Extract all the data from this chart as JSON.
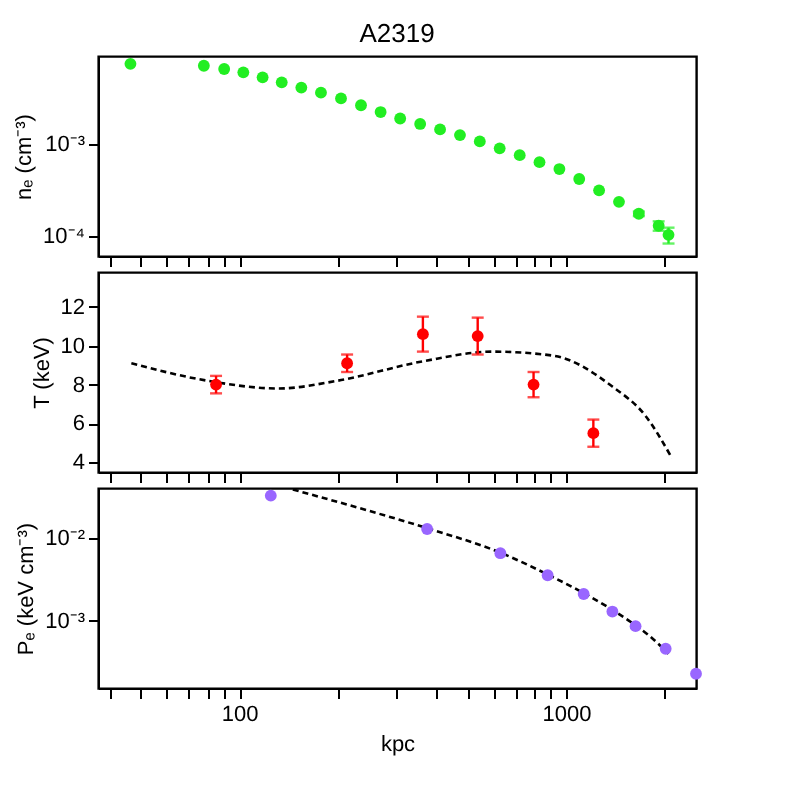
{
  "chart_data": [
    {
      "type": "scatter",
      "title": "A2319",
      "ylabel": "nₑ (cm⁻³)",
      "log": "xy",
      "grid": false,
      "marker": "circle",
      "tick_labels": "y",
      "xlim": [
        37,
        2500
      ],
      "xticks": [
        {
          "value": 40,
          "label": null
        },
        {
          "value": 50,
          "label": null
        },
        {
          "value": 60,
          "label": null
        },
        {
          "value": 70,
          "label": null
        },
        {
          "value": 80,
          "label": null
        },
        {
          "value": 90,
          "label": null
        },
        {
          "value": 100,
          "label": null
        },
        {
          "value": 200,
          "label": null
        },
        {
          "value": 300,
          "label": null
        },
        {
          "value": 400,
          "label": null
        },
        {
          "value": 500,
          "label": null
        },
        {
          "value": 600,
          "label": null
        },
        {
          "value": 700,
          "label": null
        },
        {
          "value": 800,
          "label": null
        },
        {
          "value": 900,
          "label": null
        },
        {
          "value": 1000,
          "label": null
        },
        {
          "value": 2000,
          "label": null
        }
      ],
      "ylim": [
        6e-05,
        0.009
      ],
      "yticks": [
        {
          "value": 0.0001,
          "label": "10⁻⁴"
        },
        {
          "value": 0.001,
          "label": "10⁻³"
        }
      ],
      "series": [
        {
          "color": "#22ee22",
          "x": [
            46.5,
            78,
            90,
            103,
            118,
            135,
            155,
            178,
            205,
            236,
            271,
            311,
            358,
            412,
            474,
            545,
            627,
            722,
            830,
            955,
            1098,
            1263,
            1453,
            1671,
            1922,
            2060
          ],
          "values": [
            0.0074,
            0.00705,
            0.0065,
            0.00598,
            0.00527,
            0.00465,
            0.00408,
            0.00359,
            0.00311,
            0.00262,
            0.00221,
            0.00188,
            0.00164,
            0.00143,
            0.00124,
            0.00106,
            0.00089,
            0.00075,
            0.00063,
            0.00053,
            0.000413,
            0.000311,
            0.000233,
            0.000173,
            0.000128,
            0.000102
          ],
          "errors": [
            null,
            null,
            null,
            null,
            null,
            null,
            null,
            null,
            null,
            null,
            null,
            null,
            null,
            null,
            null,
            null,
            null,
            null,
            null,
            null,
            null,
            null,
            null,
            1e-05,
            1.5e-05,
            2e-05
          ]
        }
      ]
    },
    {
      "type": "scatter",
      "ylabel": "T (keV)",
      "log": "x",
      "grid": false,
      "tick_labels": "y",
      "xlim": [
        37,
        2500
      ],
      "xticks": [
        {
          "value": 40,
          "label": null
        },
        {
          "value": 50,
          "label": null
        },
        {
          "value": 60,
          "label": null
        },
        {
          "value": 70,
          "label": null
        },
        {
          "value": 80,
          "label": null
        },
        {
          "value": 90,
          "label": null
        },
        {
          "value": 100,
          "label": null
        },
        {
          "value": 200,
          "label": null
        },
        {
          "value": 300,
          "label": null
        },
        {
          "value": 400,
          "label": null
        },
        {
          "value": 500,
          "label": null
        },
        {
          "value": 600,
          "label": null
        },
        {
          "value": 700,
          "label": null
        },
        {
          "value": 800,
          "label": null
        },
        {
          "value": 900,
          "label": null
        },
        {
          "value": 1000,
          "label": null
        },
        {
          "value": 2000,
          "label": null
        }
      ],
      "ylim": [
        3.5,
        13.8
      ],
      "yticks": [
        4,
        6,
        8,
        10,
        12
      ],
      "series": [
        {
          "type": "line",
          "color": "#000000",
          "line_style": "dashed",
          "x": [
            46.8,
            80,
            132,
            200,
            365,
            596,
            908,
            1387,
            1750,
            2113
          ],
          "values": [
            9.1,
            8.2,
            7.8,
            8.2,
            9.2,
            9.7,
            9.5,
            7.9,
            6.4,
            4.2
          ]
        },
        {
          "marker": "circle",
          "color": "#ff0000",
          "x": [
            85,
            214,
            365,
            537,
            796,
            1213
          ],
          "values": [
            8.0,
            9.1,
            10.6,
            10.5,
            8.0,
            5.5
          ],
          "errors": [
            0.45,
            0.45,
            0.9,
            0.95,
            0.65,
            0.7
          ]
        }
      ]
    },
    {
      "type": "scatter",
      "xlabel": "kpc",
      "ylabel": "Pₑ (keV cm⁻³)",
      "log": "xy",
      "grid": false,
      "xlim": [
        37,
        2500
      ],
      "xticks": [
        {
          "value": 40,
          "label": null
        },
        {
          "value": 50,
          "label": null
        },
        {
          "value": 60,
          "label": null
        },
        {
          "value": 70,
          "label": null
        },
        {
          "value": 80,
          "label": null
        },
        {
          "value": 90,
          "label": null
        },
        100,
        {
          "value": 200,
          "label": null
        },
        {
          "value": 300,
          "label": null
        },
        {
          "value": 400,
          "label": null
        },
        {
          "value": 500,
          "label": null
        },
        {
          "value": 600,
          "label": null
        },
        {
          "value": 700,
          "label": null
        },
        {
          "value": 800,
          "label": null
        },
        {
          "value": 900,
          "label": null
        },
        1000,
        {
          "value": 2000,
          "label": null
        }
      ],
      "ylim": [
        0.000155,
        0.0396
      ],
      "yticks": [
        {
          "value": 0.001,
          "label": "10⁻³"
        },
        {
          "value": 0.01,
          "label": "10⁻²"
        }
      ],
      "series": [
        {
          "type": "line",
          "color": "#000000",
          "line_style": "dashed",
          "x": [
            146,
            250,
            376,
            630,
            879,
            1133,
            1387,
            1633,
            1800,
            2060
          ],
          "values": [
            0.038,
            0.021,
            0.013,
            0.0066,
            0.0036,
            0.00215,
            0.00135,
            0.00088,
            0.00066,
            0.0004
          ]
        },
        {
          "marker": "circle",
          "color": "#9966ff",
          "x": [
            125,
            376,
            630,
            879,
            1133,
            1387,
            1633,
            2019,
            2500
          ],
          "values": [
            0.032,
            0.0127,
            0.0065,
            0.00353,
            0.0021,
            0.00129,
            0.00086,
            0.00046,
            0.00023
          ]
        }
      ]
    }
  ]
}
